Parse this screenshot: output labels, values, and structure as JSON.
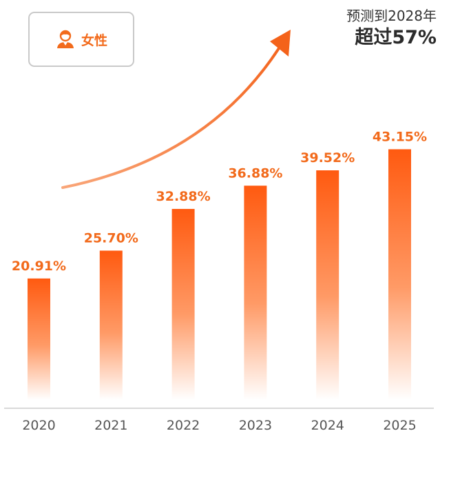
{
  "legend": {
    "label": "女性",
    "icon": "female-user-icon"
  },
  "forecast": {
    "line1": "预测到2028年",
    "line2": "超过57%"
  },
  "colors": {
    "accent": "#f26a1b",
    "bar_top": "#ff5a10",
    "axis": "#d8d8d8",
    "tick": "#555555"
  },
  "chart_data": {
    "type": "bar",
    "title": "",
    "xlabel": "",
    "ylabel": "",
    "categories": [
      "2020",
      "2021",
      "2022",
      "2023",
      "2024",
      "2025"
    ],
    "values": [
      20.91,
      25.7,
      32.88,
      36.88,
      39.52,
      43.15
    ],
    "labels": [
      "20.91%",
      "25.70%",
      "32.88%",
      "36.88%",
      "39.52%",
      "43.15%"
    ],
    "ylim": [
      0,
      54
    ],
    "grid": false,
    "legend": "top-left",
    "annotation": "trend-arrow-up"
  }
}
